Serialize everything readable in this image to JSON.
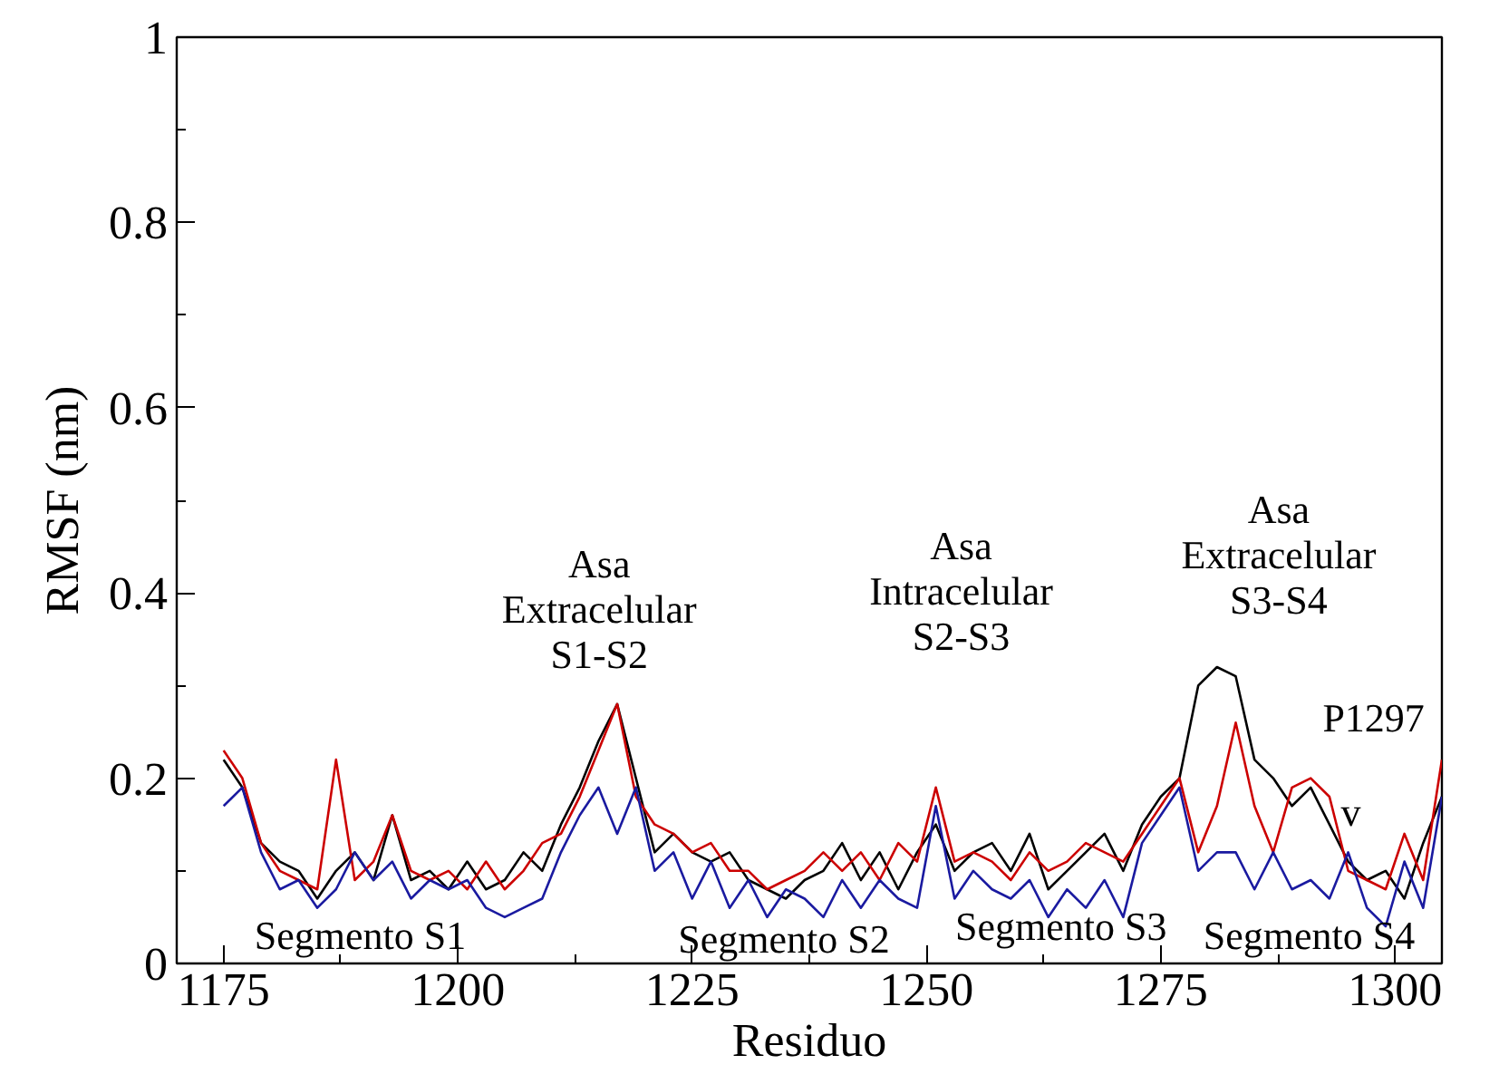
{
  "chart_data": {
    "type": "line",
    "xlabel": "Residuo",
    "ylabel": "RMSF (nm)",
    "x": [
      1175,
      1177,
      1179,
      1181,
      1183,
      1185,
      1187,
      1189,
      1191,
      1193,
      1195,
      1197,
      1199,
      1201,
      1203,
      1205,
      1207,
      1209,
      1211,
      1213,
      1215,
      1217,
      1219,
      1221,
      1223,
      1225,
      1227,
      1229,
      1231,
      1233,
      1235,
      1237,
      1239,
      1241,
      1243,
      1245,
      1247,
      1249,
      1251,
      1253,
      1255,
      1257,
      1259,
      1261,
      1263,
      1265,
      1267,
      1269,
      1271,
      1273,
      1275,
      1277,
      1279,
      1281,
      1283,
      1285,
      1287,
      1289,
      1291,
      1293,
      1295,
      1297,
      1299,
      1301,
      1303,
      1305
    ],
    "series": [
      {
        "color": "#000000",
        "values": [
          0.22,
          0.19,
          0.13,
          0.11,
          0.1,
          0.07,
          0.1,
          0.12,
          0.09,
          0.16,
          0.09,
          0.1,
          0.08,
          0.11,
          0.08,
          0.09,
          0.12,
          0.1,
          0.15,
          0.19,
          0.24,
          0.28,
          0.2,
          0.12,
          0.14,
          0.12,
          0.11,
          0.12,
          0.09,
          0.08,
          0.07,
          0.09,
          0.1,
          0.13,
          0.09,
          0.12,
          0.08,
          0.12,
          0.15,
          0.1,
          0.12,
          0.13,
          0.1,
          0.14,
          0.08,
          0.1,
          0.12,
          0.14,
          0.1,
          0.15,
          0.18,
          0.2,
          0.3,
          0.32,
          0.31,
          0.22,
          0.2,
          0.17,
          0.19,
          0.15,
          0.11,
          0.09,
          0.1,
          0.07,
          0.13,
          0.18
        ]
      },
      {
        "color": "#cc0000",
        "values": [
          0.23,
          0.2,
          0.13,
          0.1,
          0.09,
          0.08,
          0.22,
          0.09,
          0.11,
          0.16,
          0.1,
          0.09,
          0.1,
          0.08,
          0.11,
          0.08,
          0.1,
          0.13,
          0.14,
          0.18,
          0.23,
          0.28,
          0.18,
          0.15,
          0.14,
          0.12,
          0.13,
          0.1,
          0.1,
          0.08,
          0.09,
          0.1,
          0.12,
          0.1,
          0.12,
          0.09,
          0.13,
          0.11,
          0.19,
          0.11,
          0.12,
          0.11,
          0.09,
          0.12,
          0.1,
          0.11,
          0.13,
          0.12,
          0.11,
          0.14,
          0.17,
          0.2,
          0.12,
          0.17,
          0.26,
          0.17,
          0.12,
          0.19,
          0.2,
          0.18,
          0.1,
          0.09,
          0.08,
          0.14,
          0.09,
          0.22
        ]
      },
      {
        "color": "#1a1aa0",
        "values": [
          0.17,
          0.19,
          0.12,
          0.08,
          0.09,
          0.06,
          0.08,
          0.12,
          0.09,
          0.11,
          0.07,
          0.09,
          0.08,
          0.09,
          0.06,
          0.05,
          0.06,
          0.07,
          0.12,
          0.16,
          0.19,
          0.14,
          0.19,
          0.1,
          0.12,
          0.07,
          0.11,
          0.06,
          0.09,
          0.05,
          0.08,
          0.07,
          0.05,
          0.09,
          0.06,
          0.09,
          0.07,
          0.06,
          0.17,
          0.07,
          0.1,
          0.08,
          0.07,
          0.09,
          0.05,
          0.08,
          0.06,
          0.09,
          0.05,
          0.13,
          0.16,
          0.19,
          0.1,
          0.12,
          0.12,
          0.08,
          0.12,
          0.08,
          0.09,
          0.07,
          0.12,
          0.06,
          0.04,
          0.11,
          0.06,
          0.18
        ]
      }
    ],
    "xlim": [
      1170,
      1305
    ],
    "ylim": [
      0,
      1
    ],
    "xticks": [
      1175,
      1200,
      1225,
      1250,
      1275,
      1300
    ],
    "yticks": [
      0,
      0.2,
      0.4,
      0.6,
      0.8,
      1
    ],
    "grid": false,
    "marker": "none",
    "line_style": "solid",
    "annotations": [
      "Asa\nExtracelular\nS1-S2",
      "Asa\nIntracelular\nS2-S3",
      "Asa\nExtracelular\nS3-S4",
      "P1297",
      "v",
      "Segmento S1",
      "Segmento S2",
      "Segmento S3",
      "Segmento S4"
    ]
  }
}
